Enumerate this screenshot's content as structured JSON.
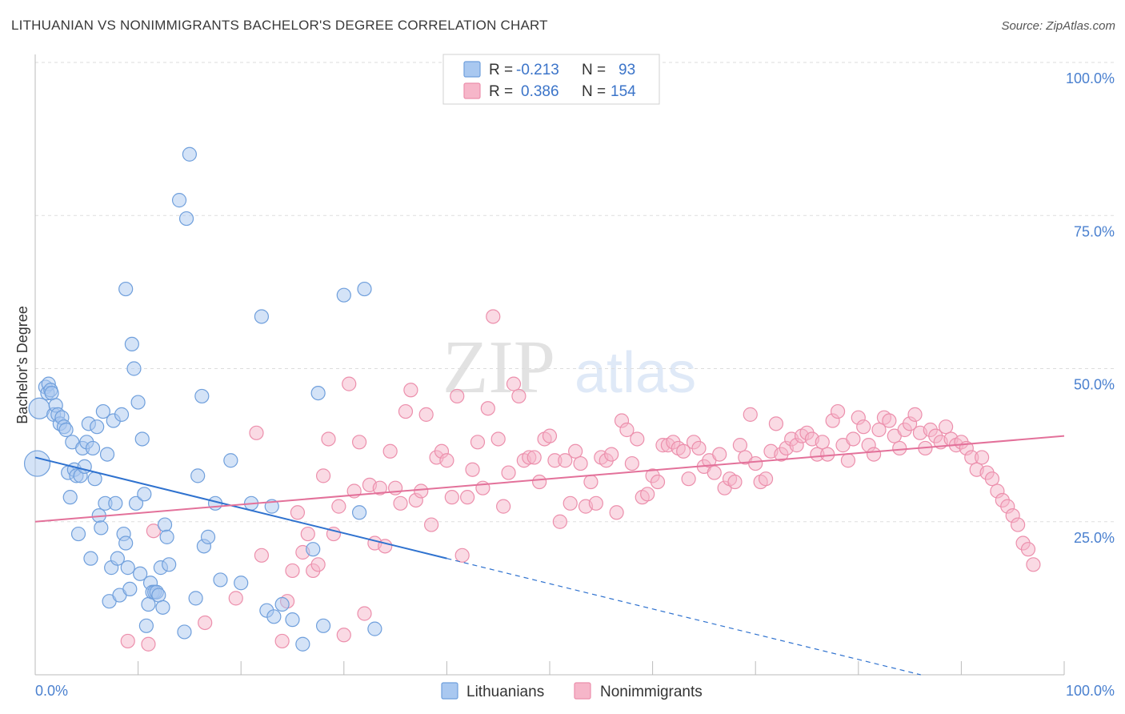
{
  "title": "LITHUANIAN VS NONIMMIGRANTS BACHELOR'S DEGREE CORRELATION CHART",
  "source": "Source: ZipAtlas.com",
  "watermark": {
    "zip": "ZIP",
    "atlas": "atlas"
  },
  "stats": [
    {
      "r_label": "R =",
      "r_value": "-0.213",
      "n_label": "N =",
      "n_value": "93"
    },
    {
      "r_label": "R =",
      "r_value": "0.386",
      "n_label": "N =",
      "n_value": "154"
    }
  ],
  "colors": {
    "blue_fill": "#a9c8f0",
    "blue_stroke": "#6f9fdc",
    "blue_line": "#2f72cf",
    "pink_fill": "#f6b6c9",
    "pink_stroke": "#ec8fac",
    "pink_line": "#e3719a",
    "tick_text": "#4a80cf",
    "grid": "#dddddd"
  },
  "chart_data": {
    "type": "scatter",
    "title": "LITHUANIAN VS NONIMMIGRANTS BACHELOR'S DEGREE CORRELATION CHART",
    "xlabel": "",
    "ylabel": "Bachelor's Degree",
    "xlim": [
      0,
      100
    ],
    "ylim": [
      0,
      100
    ],
    "x_tick_labels": {
      "left": "0.0%",
      "right": "100.0%"
    },
    "y_ticks": [
      {
        "value": 100,
        "label": "100.0%"
      },
      {
        "value": 75,
        "label": "75.0%"
      },
      {
        "value": 50,
        "label": "50.0%"
      },
      {
        "value": 25,
        "label": "25.0%"
      }
    ],
    "grid": "horizontal dashed",
    "legend_position": "bottom-center",
    "series": [
      {
        "name": "Lithuanians",
        "r": -0.213,
        "n": 93,
        "trend": {
          "x0": 0,
          "y0": 35.5,
          "x1": 40,
          "y1": 19.0,
          "dash_to_x": 100,
          "dash_to_y": -6.5
        },
        "points": [
          [
            0.2,
            34.5
          ],
          [
            0.4,
            43.5
          ],
          [
            1.0,
            47.0
          ],
          [
            1.2,
            46.0
          ],
          [
            1.3,
            47.5
          ],
          [
            1.5,
            46.5
          ],
          [
            1.6,
            46.0
          ],
          [
            1.8,
            42.5
          ],
          [
            2.0,
            44.0
          ],
          [
            2.2,
            42.5
          ],
          [
            2.4,
            41.0
          ],
          [
            2.6,
            42.0
          ],
          [
            2.8,
            40.5
          ],
          [
            3.0,
            40.0
          ],
          [
            3.2,
            33.0
          ],
          [
            3.4,
            29.0
          ],
          [
            3.6,
            38.0
          ],
          [
            3.8,
            33.5
          ],
          [
            4.0,
            32.5
          ],
          [
            4.2,
            23.0
          ],
          [
            4.4,
            32.5
          ],
          [
            4.6,
            37.0
          ],
          [
            4.8,
            34.0
          ],
          [
            5.0,
            38.0
          ],
          [
            5.2,
            41.0
          ],
          [
            5.4,
            19.0
          ],
          [
            5.6,
            37.0
          ],
          [
            5.8,
            32.0
          ],
          [
            6.0,
            40.5
          ],
          [
            6.2,
            26.0
          ],
          [
            6.4,
            24.0
          ],
          [
            6.6,
            43.0
          ],
          [
            6.8,
            28.0
          ],
          [
            7.0,
            36.0
          ],
          [
            7.2,
            12.0
          ],
          [
            7.4,
            17.5
          ],
          [
            7.6,
            41.5
          ],
          [
            7.8,
            28.0
          ],
          [
            8.0,
            19.0
          ],
          [
            8.2,
            13.0
          ],
          [
            8.4,
            42.5
          ],
          [
            8.6,
            23.0
          ],
          [
            8.8,
            21.5
          ],
          [
            9.0,
            17.5
          ],
          [
            9.2,
            14.0
          ],
          [
            9.4,
            54.0
          ],
          [
            9.6,
            50.0
          ],
          [
            9.8,
            28.0
          ],
          [
            10.0,
            44.5
          ],
          [
            10.2,
            16.5
          ],
          [
            10.4,
            38.5
          ],
          [
            10.6,
            29.5
          ],
          [
            10.8,
            8.0
          ],
          [
            11.0,
            11.5
          ],
          [
            11.2,
            15.0
          ],
          [
            11.4,
            13.5
          ],
          [
            11.6,
            13.5
          ],
          [
            11.8,
            13.5
          ],
          [
            12.0,
            13.0
          ],
          [
            12.2,
            17.5
          ],
          [
            12.4,
            11.0
          ],
          [
            12.6,
            24.5
          ],
          [
            12.8,
            22.5
          ],
          [
            13.0,
            18.0
          ],
          [
            14.0,
            77.5
          ],
          [
            14.5,
            7.0
          ],
          [
            14.7,
            74.5
          ],
          [
            15.0,
            85.0
          ],
          [
            15.6,
            12.5
          ],
          [
            15.8,
            32.5
          ],
          [
            16.2,
            45.5
          ],
          [
            16.4,
            21.0
          ],
          [
            16.8,
            22.5
          ],
          [
            17.5,
            28.0
          ],
          [
            18.0,
            15.5
          ],
          [
            19.0,
            35.0
          ],
          [
            20.0,
            15.0
          ],
          [
            21.0,
            28.0
          ],
          [
            22.0,
            58.5
          ],
          [
            22.5,
            10.5
          ],
          [
            23.0,
            27.5
          ],
          [
            23.2,
            9.5
          ],
          [
            24.0,
            11.5
          ],
          [
            25.0,
            9.0
          ],
          [
            26.0,
            5.0
          ],
          [
            27.0,
            20.5
          ],
          [
            27.5,
            46.0
          ],
          [
            28.0,
            8.0
          ],
          [
            30.0,
            62.0
          ],
          [
            31.5,
            26.5
          ],
          [
            32.0,
            63.0
          ],
          [
            33.0,
            7.5
          ],
          [
            8.8,
            63.0
          ]
        ]
      },
      {
        "name": "Nonimmigrants",
        "r": 0.386,
        "n": 154,
        "trend": {
          "x0": 0,
          "y0": 25.0,
          "x1": 100,
          "y1": 39.0
        },
        "points": [
          [
            9.0,
            5.5
          ],
          [
            11.0,
            5.0
          ],
          [
            11.5,
            23.5
          ],
          [
            16.5,
            8.5
          ],
          [
            19.5,
            12.5
          ],
          [
            21.5,
            39.5
          ],
          [
            22.0,
            19.5
          ],
          [
            24.0,
            5.5
          ],
          [
            24.5,
            12.0
          ],
          [
            25.0,
            17.0
          ],
          [
            25.5,
            26.5
          ],
          [
            26.0,
            20.0
          ],
          [
            26.5,
            23.0
          ],
          [
            27.0,
            17.0
          ],
          [
            27.5,
            18.0
          ],
          [
            28.0,
            32.5
          ],
          [
            28.5,
            38.5
          ],
          [
            29.0,
            23.0
          ],
          [
            29.5,
            27.5
          ],
          [
            30.0,
            6.5
          ],
          [
            30.5,
            47.5
          ],
          [
            31.0,
            30.0
          ],
          [
            31.5,
            38.0
          ],
          [
            32.0,
            10.0
          ],
          [
            32.5,
            31.0
          ],
          [
            33.0,
            21.5
          ],
          [
            33.5,
            30.5
          ],
          [
            34.0,
            21.0
          ],
          [
            34.5,
            36.5
          ],
          [
            35.0,
            30.5
          ],
          [
            35.5,
            28.0
          ],
          [
            36.0,
            43.0
          ],
          [
            36.5,
            46.5
          ],
          [
            37.0,
            28.5
          ],
          [
            37.5,
            30.0
          ],
          [
            38.0,
            42.5
          ],
          [
            38.5,
            24.5
          ],
          [
            39.0,
            35.5
          ],
          [
            39.5,
            36.5
          ],
          [
            40.0,
            35.0
          ],
          [
            40.5,
            29.0
          ],
          [
            41.0,
            45.5
          ],
          [
            41.5,
            19.5
          ],
          [
            42.0,
            29.0
          ],
          [
            42.5,
            33.5
          ],
          [
            43.0,
            38.0
          ],
          [
            43.5,
            30.5
          ],
          [
            44.0,
            43.5
          ],
          [
            44.5,
            58.5
          ],
          [
            45.0,
            38.5
          ],
          [
            45.5,
            27.5
          ],
          [
            46.0,
            33.0
          ],
          [
            46.5,
            47.5
          ],
          [
            47.0,
            45.5
          ],
          [
            47.5,
            35.0
          ],
          [
            48.0,
            35.5
          ],
          [
            48.5,
            35.5
          ],
          [
            49.0,
            31.5
          ],
          [
            49.5,
            38.5
          ],
          [
            50.0,
            39.0
          ],
          [
            50.5,
            35.0
          ],
          [
            51.0,
            25.0
          ],
          [
            51.5,
            35.0
          ],
          [
            52.0,
            28.0
          ],
          [
            52.5,
            36.5
          ],
          [
            53.0,
            34.5
          ],
          [
            53.5,
            27.5
          ],
          [
            54.0,
            31.5
          ],
          [
            54.5,
            28.0
          ],
          [
            55.0,
            35.5
          ],
          [
            55.5,
            35.0
          ],
          [
            56.0,
            36.0
          ],
          [
            56.5,
            26.5
          ],
          [
            57.0,
            41.5
          ],
          [
            57.5,
            40.0
          ],
          [
            58.0,
            34.5
          ],
          [
            58.5,
            38.5
          ],
          [
            59.0,
            29.0
          ],
          [
            59.5,
            29.5
          ],
          [
            60.0,
            32.5
          ],
          [
            60.5,
            31.5
          ],
          [
            61.0,
            37.5
          ],
          [
            61.5,
            37.5
          ],
          [
            62.0,
            38.0
          ],
          [
            62.5,
            37.0
          ],
          [
            63.0,
            36.5
          ],
          [
            63.5,
            32.0
          ],
          [
            64.0,
            38.0
          ],
          [
            64.5,
            37.0
          ],
          [
            65.0,
            34.0
          ],
          [
            65.5,
            35.0
          ],
          [
            66.0,
            33.0
          ],
          [
            66.5,
            36.0
          ],
          [
            67.0,
            30.5
          ],
          [
            67.5,
            32.0
          ],
          [
            68.0,
            31.5
          ],
          [
            68.5,
            37.5
          ],
          [
            69.0,
            35.5
          ],
          [
            69.5,
            42.5
          ],
          [
            70.0,
            34.5
          ],
          [
            70.5,
            31.5
          ],
          [
            71.0,
            32.0
          ],
          [
            71.5,
            36.5
          ],
          [
            72.0,
            41.0
          ],
          [
            72.5,
            36.0
          ],
          [
            73.0,
            37.0
          ],
          [
            73.5,
            38.5
          ],
          [
            74.0,
            37.5
          ],
          [
            74.5,
            39.0
          ],
          [
            75.0,
            39.5
          ],
          [
            75.5,
            38.5
          ],
          [
            76.0,
            36.0
          ],
          [
            76.5,
            38.0
          ],
          [
            77.0,
            36.0
          ],
          [
            77.5,
            41.5
          ],
          [
            78.0,
            43.0
          ],
          [
            78.5,
            37.5
          ],
          [
            79.0,
            35.0
          ],
          [
            79.5,
            38.5
          ],
          [
            80.0,
            42.0
          ],
          [
            80.5,
            40.5
          ],
          [
            81.0,
            37.5
          ],
          [
            81.5,
            36.0
          ],
          [
            82.0,
            40.0
          ],
          [
            82.5,
            42.0
          ],
          [
            83.0,
            41.5
          ],
          [
            83.5,
            39.0
          ],
          [
            84.0,
            37.0
          ],
          [
            84.5,
            40.0
          ],
          [
            85.0,
            41.0
          ],
          [
            85.5,
            42.5
          ],
          [
            86.0,
            39.5
          ],
          [
            86.5,
            37.0
          ],
          [
            87.0,
            40.0
          ],
          [
            87.5,
            39.0
          ],
          [
            88.0,
            38.0
          ],
          [
            88.5,
            40.5
          ],
          [
            89.0,
            38.5
          ],
          [
            89.5,
            37.5
          ],
          [
            90.0,
            38.0
          ],
          [
            90.5,
            37.0
          ],
          [
            91.0,
            35.5
          ],
          [
            91.5,
            33.5
          ],
          [
            92.0,
            35.5
          ],
          [
            92.5,
            33.0
          ],
          [
            93.0,
            32.0
          ],
          [
            93.5,
            30.0
          ],
          [
            94.0,
            28.5
          ],
          [
            94.5,
            27.5
          ],
          [
            95.0,
            26.0
          ],
          [
            95.5,
            24.5
          ],
          [
            96.0,
            21.5
          ],
          [
            96.5,
            20.5
          ],
          [
            97.0,
            18.0
          ]
        ]
      }
    ]
  },
  "legend": [
    {
      "label": "Lithuanians"
    },
    {
      "label": "Nonimmigrants"
    }
  ]
}
